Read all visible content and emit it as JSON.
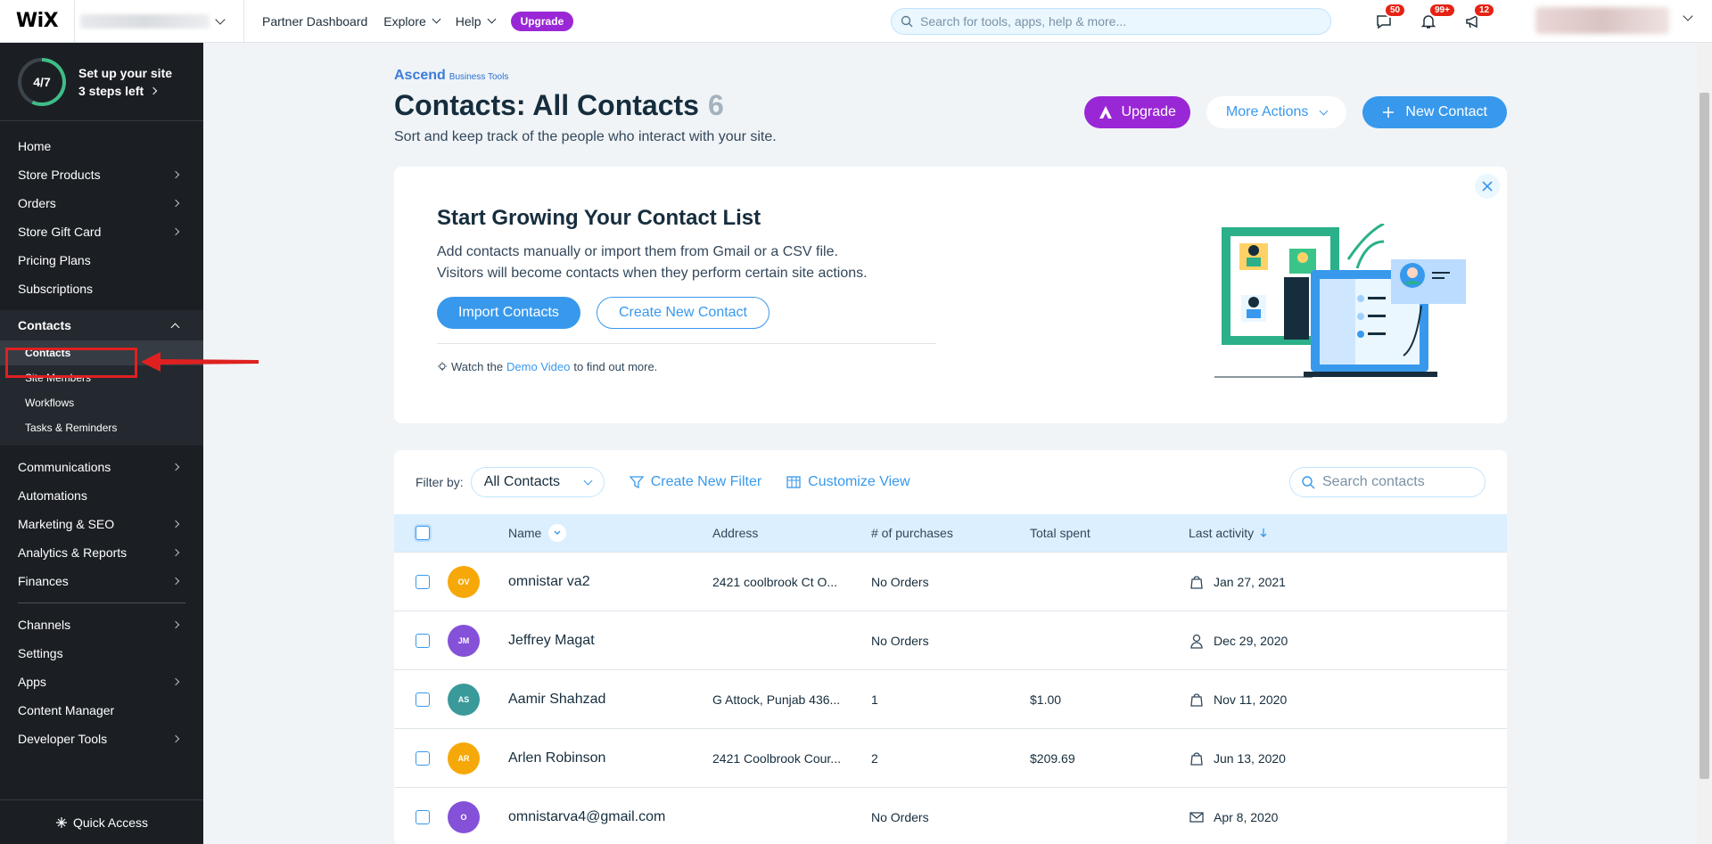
{
  "topbar": {
    "logo": "WiX",
    "nav": [
      "Partner Dashboard",
      "Explore",
      "Help"
    ],
    "upgrade": "Upgrade",
    "search_placeholder": "Search for tools, apps, help & more...",
    "badges": {
      "messages": "50",
      "notifications": "99+",
      "announcements": "12"
    }
  },
  "sidebar": {
    "setup_progress": "4/7",
    "setup_progress_fraction": 0.57,
    "setup_title": "Set up your site",
    "setup_steps": "3 steps left",
    "items_top": [
      "Home",
      "Store Products",
      "Orders",
      "Store Gift Card",
      "Pricing Plans",
      "Subscriptions"
    ],
    "contacts_group": "Contacts",
    "contacts_sub": [
      "Contacts",
      "Site Members",
      "Workflows",
      "Tasks & Reminders"
    ],
    "items_mid": [
      "Communications",
      "Automations",
      "Marketing & SEO",
      "Analytics & Reports",
      "Finances"
    ],
    "items_bottom": [
      "Channels",
      "Settings",
      "Apps",
      "Content Manager",
      "Developer Tools"
    ],
    "quick_access": "Quick Access"
  },
  "page": {
    "brand": "Ascend",
    "brand_sub": "Business Tools",
    "title": "Contacts: All Contacts",
    "count": "6",
    "subtitle": "Sort and keep track of the people who interact with your site.",
    "upgrade_btn": "Upgrade",
    "more_actions": "More Actions",
    "new_contact": "New Contact"
  },
  "grow": {
    "title": "Start Growing Your Contact List",
    "line1": "Add contacts manually or import them from Gmail or a CSV file.",
    "line2": "Visitors will become contacts when they perform certain site actions.",
    "import": "Import Contacts",
    "create": "Create New Contact",
    "foot_pre": "Watch the",
    "foot_link": "Demo Video",
    "foot_post": "to find out more."
  },
  "table": {
    "filter_label": "Filter by:",
    "filter_value": "All Contacts",
    "create_filter": "Create New Filter",
    "customize_view": "Customize View",
    "search_placeholder": "Search contacts",
    "headers": {
      "name": "Name",
      "address": "Address",
      "purchases": "# of purchases",
      "spent": "Total spent",
      "activity": "Last activity"
    },
    "rows": [
      {
        "initials": "OV",
        "color": "#f7a809",
        "name": "omnistar va2",
        "address": "2421 coolbrook Ct O...",
        "purchases": "No Orders",
        "spent": "",
        "activity_icon": "bag-icon",
        "activity": "Jan 27, 2021"
      },
      {
        "initials": "JM",
        "color": "#8451d8",
        "name": "Jeffrey Magat",
        "address": "",
        "purchases": "No Orders",
        "spent": "",
        "activity_icon": "person-icon",
        "activity": "Dec 29, 2020"
      },
      {
        "initials": "AS",
        "color": "#3a9a9a",
        "name": "Aamir Shahzad",
        "address": "G Attock, Punjab 436...",
        "purchases": "1",
        "spent": "$1.00",
        "activity_icon": "bag-icon",
        "activity": "Nov 11, 2020"
      },
      {
        "initials": "AR",
        "color": "#f7a809",
        "name": "Arlen Robinson",
        "address": "2421 Coolbrook Cour...",
        "purchases": "2",
        "spent": "$209.69",
        "activity_icon": "bag-icon",
        "activity": "Jun 13, 2020"
      },
      {
        "initials": "O",
        "color": "#8451d8",
        "name": "omnistarva4@gmail.com",
        "address": "",
        "purchases": "No Orders",
        "spent": "",
        "activity_icon": "mail-icon",
        "activity": "Apr 8, 2020"
      }
    ]
  }
}
